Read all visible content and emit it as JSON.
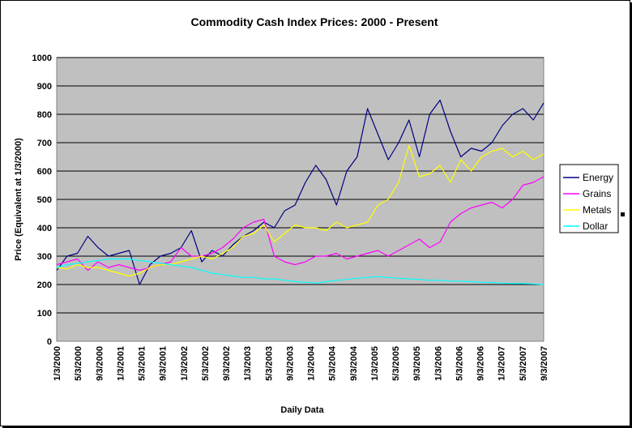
{
  "chart_data": {
    "type": "line",
    "title": "Commodity Cash Index Prices:  2000 - Present",
    "xlabel": "Daily Data",
    "ylabel": "Price (Equivalent at 1/3/2000)",
    "ylim": [
      0,
      1000
    ],
    "yticks": [
      0,
      100,
      200,
      300,
      400,
      500,
      600,
      700,
      800,
      900,
      1000
    ],
    "xticks": [
      "1/3/2000",
      "5/3/2000",
      "9/3/2000",
      "1/3/2001",
      "5/3/2001",
      "9/3/2001",
      "1/3/2002",
      "5/3/2002",
      "9/3/2002",
      "1/3/2003",
      "5/3/2003",
      "9/3/2003",
      "1/3/2004",
      "5/3/2004",
      "9/3/2004",
      "1/3/2005",
      "5/3/2005",
      "9/3/2005",
      "1/3/2006",
      "5/3/2006",
      "9/3/2006",
      "1/3/2007",
      "5/3/2007",
      "9/3/2007"
    ],
    "grid": true,
    "legend": "right",
    "background": "#c0c0c0",
    "series": [
      {
        "name": "Energy",
        "color": "#000080",
        "values": [
          250,
          300,
          310,
          370,
          330,
          300,
          310,
          320,
          200,
          270,
          300,
          310,
          330,
          390,
          280,
          320,
          300,
          340,
          370,
          390,
          420,
          400,
          460,
          480,
          560,
          620,
          570,
          480,
          600,
          650,
          820,
          730,
          640,
          700,
          780,
          650,
          800,
          850,
          740,
          650,
          680,
          670,
          700,
          760,
          800,
          820,
          780,
          840
        ]
      },
      {
        "name": "Grains",
        "color": "#ff00ff",
        "values": [
          270,
          280,
          290,
          250,
          280,
          260,
          270,
          260,
          250,
          260,
          270,
          280,
          330,
          300,
          300,
          310,
          330,
          360,
          400,
          420,
          430,
          300,
          280,
          270,
          280,
          300,
          300,
          310,
          290,
          300,
          310,
          320,
          300,
          320,
          340,
          360,
          330,
          350,
          420,
          450,
          470,
          480,
          490,
          470,
          500,
          550,
          560,
          580
        ]
      },
      {
        "name": "Metals",
        "color": "#ffff00",
        "values": [
          260,
          255,
          270,
          260,
          260,
          250,
          240,
          230,
          240,
          260,
          270,
          270,
          280,
          290,
          300,
          290,
          310,
          330,
          370,
          380,
          410,
          350,
          380,
          410,
          400,
          400,
          390,
          420,
          400,
          410,
          420,
          480,
          500,
          560,
          690,
          580,
          590,
          620,
          560,
          640,
          600,
          650,
          670,
          680,
          650,
          670,
          640,
          660
        ]
      },
      {
        "name": "Dollar",
        "color": "#00ffff",
        "values": [
          260,
          270,
          275,
          280,
          285,
          290,
          290,
          290,
          285,
          280,
          275,
          270,
          265,
          260,
          250,
          240,
          235,
          230,
          225,
          225,
          220,
          220,
          215,
          210,
          208,
          205,
          210,
          215,
          218,
          222,
          225,
          228,
          225,
          222,
          220,
          218,
          215,
          215,
          212,
          212,
          210,
          208,
          207,
          205,
          204,
          203,
          202,
          200
        ]
      }
    ]
  }
}
